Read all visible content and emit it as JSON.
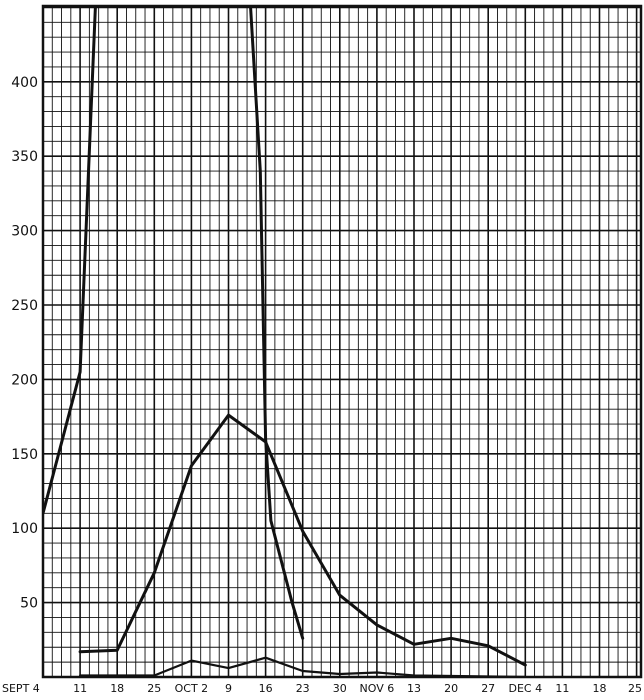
{
  "chart_data": {
    "type": "line",
    "title": "",
    "xlabel": "",
    "ylabel": "",
    "grid": true,
    "xlim": [
      0,
      84
    ],
    "ylim": [
      0,
      450
    ],
    "y_ticks": [
      50,
      100,
      150,
      200,
      250,
      300,
      350,
      400
    ],
    "x_ticks": [
      {
        "day": 0,
        "label": "SEPT 4"
      },
      {
        "day": 7,
        "label": "11"
      },
      {
        "day": 14,
        "label": "18"
      },
      {
        "day": 21,
        "label": "25"
      },
      {
        "day": 28,
        "label": "OCT 2"
      },
      {
        "day": 35,
        "label": "9"
      },
      {
        "day": 42,
        "label": "16"
      },
      {
        "day": 49,
        "label": "23"
      },
      {
        "day": 56,
        "label": "30"
      },
      {
        "day": 63,
        "label": "NOV 6"
      },
      {
        "day": 70,
        "label": "13"
      },
      {
        "day": 77,
        "label": "20"
      },
      {
        "day": 84,
        "label": "27"
      },
      {
        "day": 91,
        "label": "DEC 4"
      },
      {
        "day": 98,
        "label": "11"
      },
      {
        "day": 105,
        "label": "18"
      },
      {
        "day": 112,
        "label": "25"
      }
    ],
    "series": [
      {
        "points": [
          [
            0,
            110
          ],
          [
            7,
            205
          ],
          [
            10,
            460
          ]
        ],
        "stroke_width": 3
      },
      {
        "points": [
          [
            39,
            460
          ],
          [
            41,
            340
          ],
          [
            42,
            160
          ],
          [
            43,
            105
          ],
          [
            47,
            50
          ],
          [
            49,
            26
          ]
        ],
        "stroke_width": 3
      },
      {
        "points": [
          [
            7,
            17
          ],
          [
            14,
            18
          ],
          [
            21,
            70
          ],
          [
            28,
            142
          ],
          [
            35,
            176
          ],
          [
            42,
            158
          ],
          [
            49,
            98
          ],
          [
            56,
            55
          ],
          [
            63,
            35
          ],
          [
            70,
            22
          ],
          [
            77,
            26
          ],
          [
            84,
            21
          ],
          [
            91,
            8
          ]
        ],
        "stroke_width": 3
      },
      {
        "points": [
          [
            7,
            1
          ],
          [
            21,
            1
          ],
          [
            28,
            11
          ],
          [
            35,
            6
          ],
          [
            42,
            13
          ],
          [
            49,
            4
          ],
          [
            56,
            2
          ],
          [
            63,
            3
          ],
          [
            70,
            1
          ],
          [
            91,
            0
          ]
        ],
        "stroke_width": 2.2
      }
    ]
  }
}
